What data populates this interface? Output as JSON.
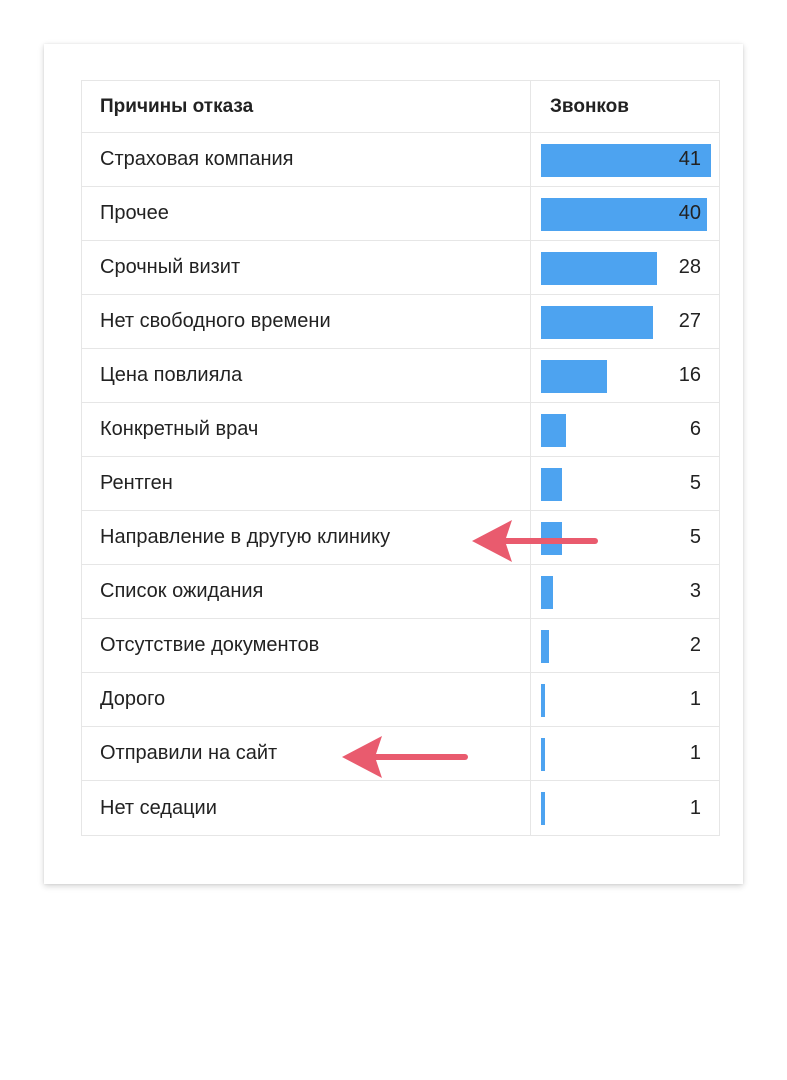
{
  "chart_data": {
    "type": "table",
    "header": {
      "label": "Причины отказа",
      "value": "Звонков"
    },
    "max_value": 41,
    "categories": [
      "Страховая компания",
      "Прочее",
      "Срочный визит",
      "Нет свободного времени",
      "Цена повлияла",
      "Конкретный врач",
      "Рентген",
      "Направление в другую клинику",
      "Список ожидания",
      "Отсутствие документов",
      "Дорого",
      "Отправили на сайт",
      "Нет седации"
    ],
    "values": [
      41,
      40,
      28,
      27,
      16,
      6,
      5,
      5,
      3,
      2,
      1,
      1,
      1
    ],
    "bar_color": "#4da3f0",
    "annotations": [
      {
        "type": "arrow",
        "target": "Направление в другую клинику",
        "color": "#e95b6e"
      },
      {
        "type": "arrow",
        "target": "Отправили на сайт",
        "color": "#e95b6e"
      }
    ]
  }
}
